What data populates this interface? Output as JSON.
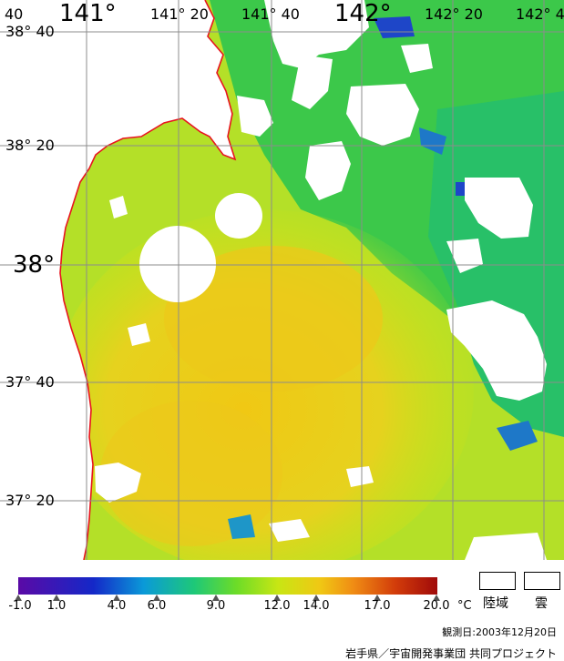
{
  "map": {
    "lon_labels": [
      "141°",
      "141° 20",
      "141° 40",
      "142°",
      "142° 20",
      "142° 4"
    ],
    "lat_labels": [
      "38° 40",
      "38° 20",
      "38°",
      "37° 40",
      "37° 20"
    ],
    "corner_label": "40"
  },
  "legend": {
    "ticks": [
      "-1.0",
      "1.0",
      "4.0",
      "6.0",
      "9.0",
      "12.0",
      "14.0",
      "17.0",
      "20.0"
    ],
    "unit": "°C",
    "land_label": "陸域",
    "cloud_label": "雲"
  },
  "footer": {
    "date": "観測日:2003年12月20日",
    "credit": "岩手県／宇宙開発事業団 共同プロジェクト"
  },
  "colors": {
    "coast": "#e8141e",
    "grid": "#8c8c8c",
    "warm": "#f0c814",
    "mid": "#c8e614",
    "cool": "#28c83c",
    "cold": "#1e46c8"
  }
}
